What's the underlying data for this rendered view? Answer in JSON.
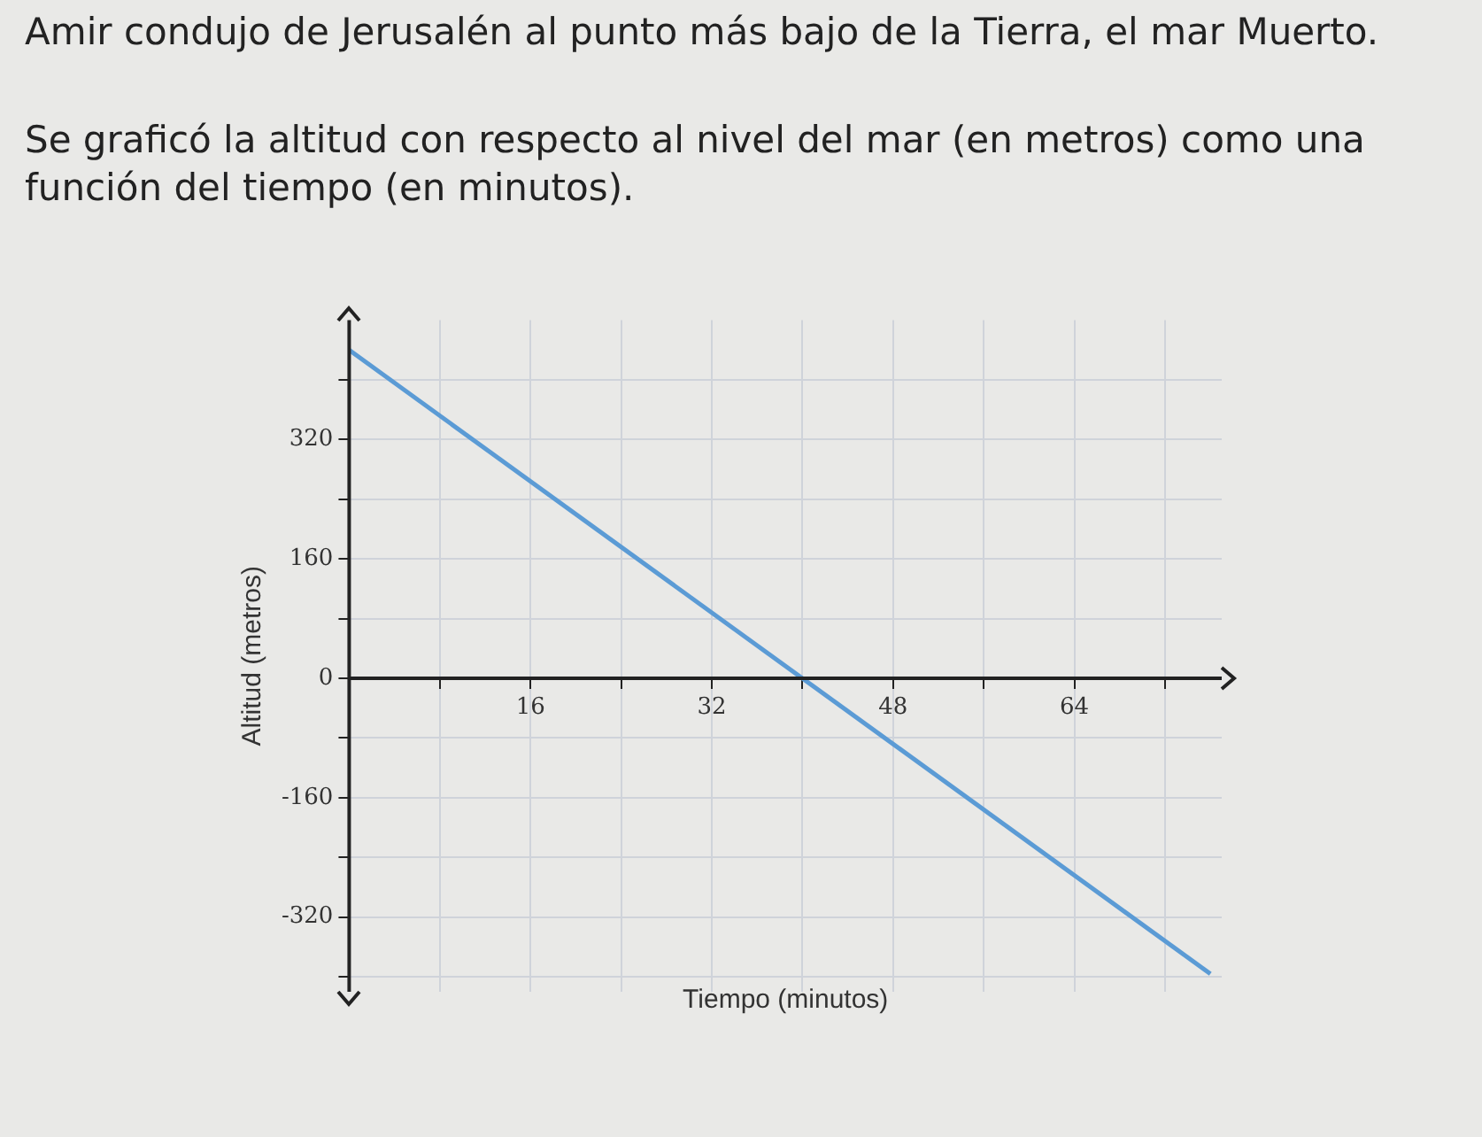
{
  "chart_data": {
    "type": "line",
    "title": "Amir condujo de Jerusalén al punto más bajo de la Tierra, el mar Muerto.",
    "subtitle": "Se graficó la altitud con respecto al nivel del mar (en metros) como una función del tiempo (en minutos).",
    "xlabel": "Tiempo (minutos)",
    "ylabel": "Altitud (metros)",
    "series": [
      {
        "color": "#5b9bd5",
        "x": [
          0,
          76
        ],
        "values": [
          440,
          -396
        ]
      }
    ],
    "xlim": [
      0,
      77
    ],
    "xticks": [
      {
        "value": 8,
        "label": null
      },
      16,
      {
        "value": 24,
        "label": null
      },
      32,
      {
        "value": 40,
        "label": null
      },
      48,
      {
        "value": 56,
        "label": null
      },
      64,
      {
        "value": 72,
        "label": null
      }
    ],
    "ylim": [
      -420,
      480
    ],
    "yticks": [
      {
        "value": -400,
        "label": null
      },
      -320,
      {
        "value": -240,
        "label": null
      },
      -160,
      {
        "value": -80,
        "label": null
      },
      0,
      {
        "value": 80,
        "label": null
      },
      160,
      {
        "value": 240,
        "label": null
      },
      320,
      {
        "value": 400,
        "label": null
      }
    ],
    "grid": true,
    "legend": false,
    "marker": "none",
    "line_style": "solid"
  }
}
